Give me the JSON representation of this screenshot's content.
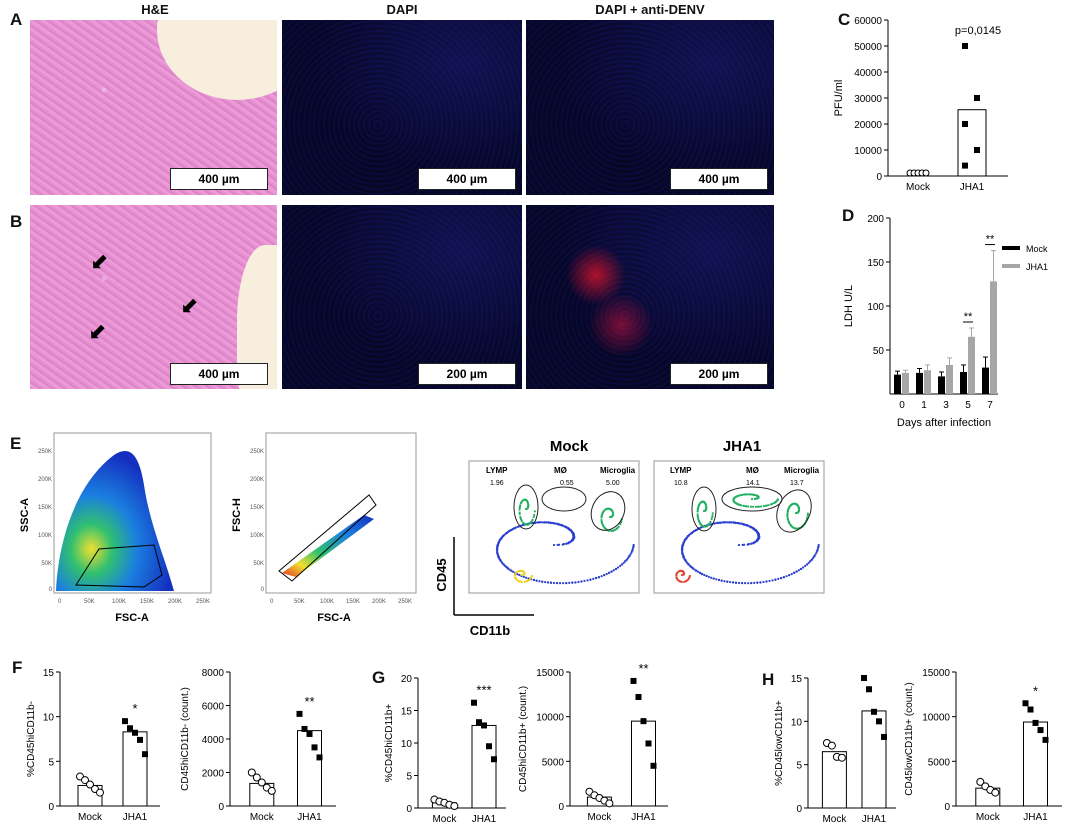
{
  "panel_letters": {
    "A": "A",
    "B": "B",
    "C": "C",
    "D": "D",
    "E": "E",
    "F": "F",
    "G": "G",
    "H": "H"
  },
  "micrograph_columns": [
    "H&E",
    "DAPI",
    "DAPI + anti-DENV"
  ],
  "scalebars": {
    "A": [
      "400 µm",
      "400 µm",
      "400 µm"
    ],
    "B": [
      "400 µm",
      "200 µm",
      "200 µm"
    ]
  },
  "flow": {
    "mock_title": "Mock",
    "jha1_title": "JHA1",
    "plot1": {
      "ylabel": "SSC-A",
      "xlabel": "FSC-A"
    },
    "plot2": {
      "ylabel": "FSC-H",
      "xlabel": "FSC-A"
    },
    "scatter_ticks": [
      "0",
      "50K",
      "100K",
      "150K",
      "200K",
      "250K"
    ],
    "gates": [
      "LYMP",
      "MØ",
      "Microglia"
    ],
    "mock_values": [
      "1.96",
      "0.55",
      "5.00"
    ],
    "jha1_values": [
      "10.8",
      "14.1",
      "13.7"
    ],
    "axis_y": "CD45",
    "axis_x": "CD11b"
  },
  "chart_data": [
    {
      "id": "C",
      "type": "bar",
      "categories": [
        "Mock",
        "JHA1"
      ],
      "values": [
        0,
        25500
      ],
      "points": [
        [
          0,
          0,
          0,
          0,
          0
        ],
        [
          50000,
          30000,
          20000,
          10000,
          4000
        ]
      ],
      "annotation": "p=0,0145",
      "ylabel": "PFU/ml",
      "ylim": [
        0,
        60000
      ],
      "yticks": [
        "0",
        "10000",
        "20000",
        "30000",
        "40000",
        "50000",
        "60000"
      ]
    },
    {
      "id": "D",
      "type": "bar",
      "categories": [
        "0",
        "1",
        "3",
        "5",
        "7"
      ],
      "series": [
        {
          "name": "Mock",
          "values": [
            22,
            24,
            20,
            25,
            30
          ],
          "errors": [
            4,
            5,
            5,
            8,
            12
          ]
        },
        {
          "name": "JHA1",
          "values": [
            24,
            27,
            33,
            65,
            128
          ],
          "errors": [
            3,
            6,
            8,
            10,
            35
          ]
        }
      ],
      "significance": [
        "",
        "",
        "",
        "**",
        "**"
      ],
      "xlabel": "Days after infection",
      "ylabel": "LDH U/L",
      "ylim": [
        0,
        200
      ],
      "yticks": [
        "50",
        "100",
        "150",
        "200"
      ]
    },
    {
      "id": "F1",
      "type": "bar",
      "categories": [
        "Mock",
        "JHA1"
      ],
      "values": [
        2.3,
        8.3
      ],
      "points": [
        [
          3.3,
          2.9,
          2.4,
          1.9,
          1.5
        ],
        [
          9.5,
          8.7,
          8.2,
          7.4,
          5.8
        ]
      ],
      "significance": "*",
      "ylabel": "%CD45hiCD11b-",
      "ylim": [
        0,
        15
      ],
      "yticks": [
        "0",
        "5",
        "10",
        "15"
      ]
    },
    {
      "id": "F2",
      "type": "bar",
      "categories": [
        "Mock",
        "JHA1"
      ],
      "values": [
        1350,
        4500
      ],
      "points": [
        [
          2000,
          1700,
          1400,
          1100,
          900
        ],
        [
          5500,
          4600,
          4300,
          3500,
          2900
        ]
      ],
      "significance": "**",
      "ylabel": "CD45hiCD11b- (count.)",
      "ylim": [
        0,
        8000
      ],
      "yticks": [
        "0",
        "2000",
        "4000",
        "6000",
        "8000"
      ]
    },
    {
      "id": "G1",
      "type": "bar",
      "categories": [
        "Mock",
        "JHA1"
      ],
      "values": [
        0.8,
        12.7
      ],
      "points": [
        [
          1.3,
          1.0,
          0.8,
          0.5,
          0.3
        ],
        [
          16.2,
          13.2,
          12.7,
          9.5,
          7.5
        ]
      ],
      "significance": "***",
      "ylabel": "%CD45hiCD11b+",
      "ylim": [
        0,
        20
      ],
      "yticks": [
        "0",
        "5",
        "10",
        "15",
        "20"
      ]
    },
    {
      "id": "G2",
      "type": "bar",
      "categories": [
        "Mock",
        "JHA1"
      ],
      "values": [
        1000,
        9500
      ],
      "points": [
        [
          1600,
          1200,
          900,
          600,
          300
        ],
        [
          14000,
          12200,
          9500,
          7000,
          4500
        ]
      ],
      "significance": "**",
      "ylabel": "CD45hiCD11b+ (count.)",
      "ylim": [
        0,
        15000
      ],
      "yticks": [
        "0",
        "5000",
        "10000",
        "15000"
      ]
    },
    {
      "id": "H1",
      "type": "bar",
      "categories": [
        "Mock",
        "JHA1"
      ],
      "values": [
        6.5,
        11.2
      ],
      "points": [
        [
          7.5,
          7.2,
          5.9,
          5.8
        ],
        [
          15.0,
          13.7,
          11.1,
          10.0,
          8.2
        ]
      ],
      "significance": "*",
      "ylabel": "%CD45lowCD11b+",
      "ylim": [
        0,
        15
      ],
      "yticks": [
        "0",
        "5",
        "10",
        "15"
      ]
    },
    {
      "id": "H2",
      "type": "bar",
      "categories": [
        "Mock",
        "JHA1"
      ],
      "values": [
        2000,
        9400
      ],
      "points": [
        [
          2700,
          2200,
          1800,
          1500
        ],
        [
          11500,
          10800,
          9300,
          8500,
          7400
        ]
      ],
      "significance": "*",
      "ylabel": "CD45lowCD11b+ (count.)",
      "ylim": [
        0,
        15000
      ],
      "yticks": [
        "0",
        "5000",
        "10000",
        "15000"
      ]
    }
  ]
}
